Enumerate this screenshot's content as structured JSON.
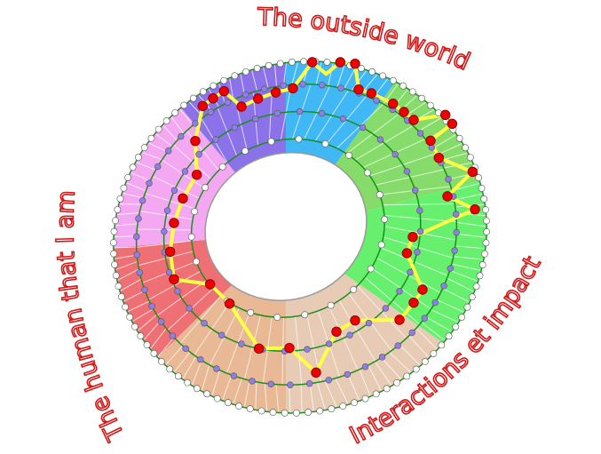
{
  "labels": {
    "top": "The outside world",
    "left": "The human that I am",
    "bottom_right": "Interactions et impact"
  },
  "colors": {
    "sectors": [
      "#3fb8f5",
      "#86dc6a",
      "#66f06e",
      "#e8cbb4",
      "#e8b994",
      "#ef7074",
      "#f4a8f2",
      "#8b72e8"
    ],
    "ring_lines": "#1a8f1a",
    "path": "#ffff44",
    "highlight_nodes": "#ee0000",
    "inner_nodes": "#8f7ee8",
    "rim_nodes": "#ffffff",
    "label_text": "#d11a1a"
  }
}
